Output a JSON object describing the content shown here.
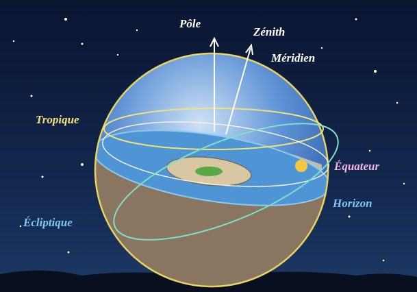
{
  "labels": {
    "pole": "Pôle",
    "zenith": "Zénith",
    "meridien": "Méridien",
    "tropique": "Tropique",
    "equateur": "Équateur",
    "horizon": "Horizon",
    "ecliptique": "Écliptique"
  }
}
